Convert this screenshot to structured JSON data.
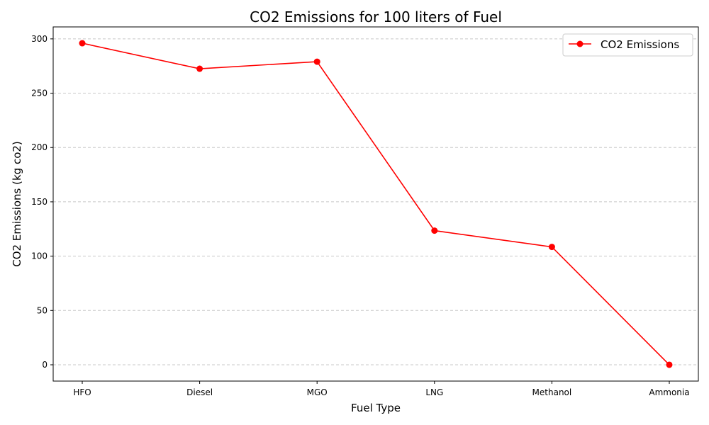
{
  "chart_data": {
    "type": "line",
    "title": "CO2 Emissions for 100 liters of Fuel",
    "xlabel": "Fuel Type",
    "ylabel": "CO2 Emissions (kg co2)",
    "categories": [
      "HFO",
      "Diesel",
      "MGO",
      "LNG",
      "Methanol",
      "Ammonia"
    ],
    "series": [
      {
        "name": "CO2 Emissions",
        "values": [
          296,
          272.5,
          279,
          123.5,
          108.5,
          0
        ],
        "color": "#ff0000"
      }
    ],
    "ylim": [
      -15,
      311
    ],
    "yticks": [
      0,
      50,
      100,
      150,
      200,
      250,
      300
    ],
    "grid": "y-dashed",
    "legend": "top-right"
  }
}
